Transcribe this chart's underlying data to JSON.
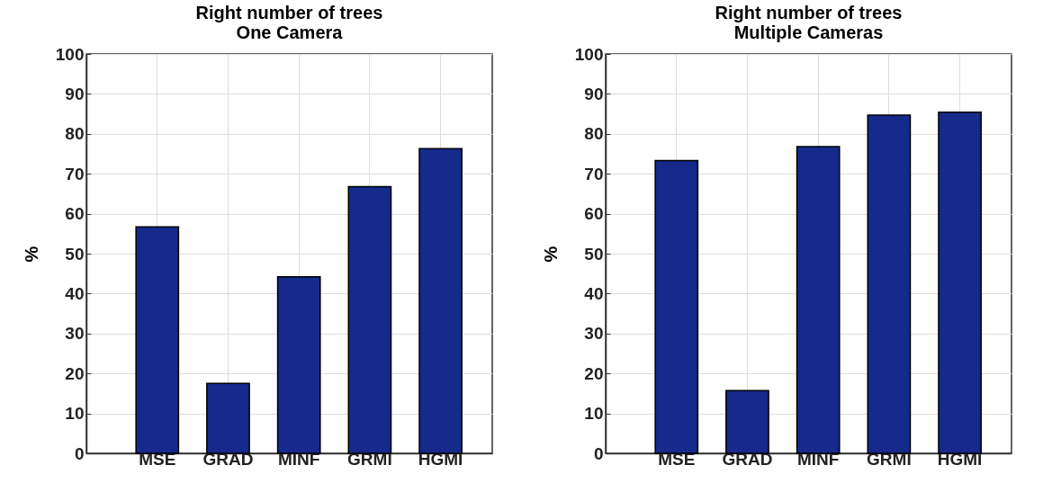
{
  "chart_data": [
    {
      "type": "bar",
      "title": "Right number of trees\nOne Camera",
      "ylabel": "%",
      "categories": [
        "MSE",
        "GRAD",
        "MINF",
        "GRMI",
        "HGMI"
      ],
      "values": [
        56.7,
        17.5,
        44.2,
        66.8,
        76.3
      ],
      "color": "#152a8a",
      "ylim": [
        0,
        100
      ],
      "yticks": [
        0,
        10,
        20,
        30,
        40,
        50,
        60,
        70,
        80,
        90,
        100
      ],
      "grid": true
    },
    {
      "type": "bar",
      "title": "Right number of trees\nMultiple Cameras",
      "ylabel": "%",
      "categories": [
        "MSE",
        "GRAD",
        "MINF",
        "GRMI",
        "HGMI"
      ],
      "values": [
        73.3,
        15.7,
        76.8,
        84.7,
        85.4
      ],
      "color": "#152a8a",
      "ylim": [
        0,
        100
      ],
      "yticks": [
        0,
        10,
        20,
        30,
        40,
        50,
        60,
        70,
        80,
        90,
        100
      ],
      "grid": true
    }
  ]
}
